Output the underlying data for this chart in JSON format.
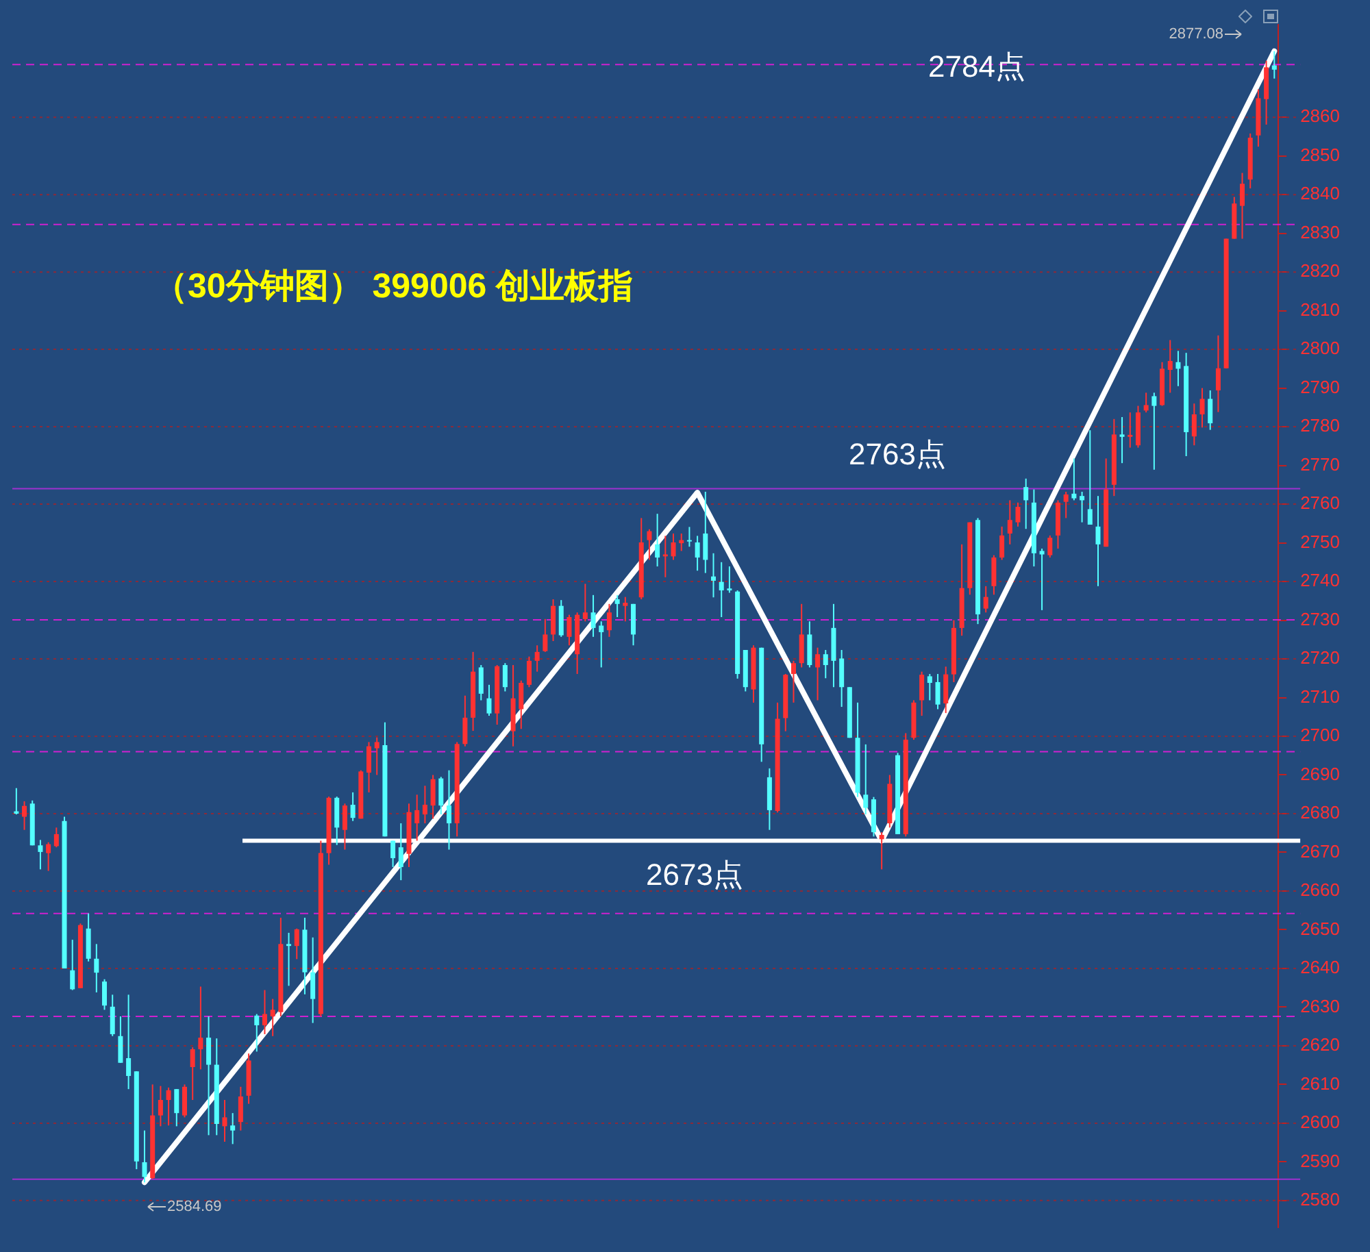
{
  "chart_data": {
    "type": "candlestick",
    "title": "（30分钟图） 399006 创业板指",
    "categories": [
      null,
      null,
      null,
      null,
      null,
      null,
      null,
      null,
      null,
      null,
      null,
      null,
      null,
      null,
      null,
      null,
      null,
      null,
      null,
      null,
      null,
      null,
      null,
      null,
      null,
      null,
      null,
      null,
      null,
      null,
      null,
      null,
      null,
      null,
      null,
      null,
      null,
      null,
      null,
      null,
      null,
      null,
      null,
      null,
      null,
      null,
      null,
      null,
      null,
      null,
      null,
      null,
      null,
      null,
      null,
      null,
      null,
      null,
      null,
      null,
      null,
      null,
      null,
      null,
      null,
      null,
      null,
      null,
      null,
      null,
      null,
      null,
      null,
      null,
      null,
      null,
      null,
      null,
      null,
      null,
      null,
      null,
      null,
      null,
      null,
      null,
      null,
      null,
      null,
      null,
      null,
      null,
      null,
      null,
      null,
      null,
      null,
      null,
      null,
      null,
      null,
      null,
      null,
      null,
      null,
      null,
      null,
      null,
      null,
      null,
      null,
      null,
      null,
      null,
      null,
      null,
      null,
      null,
      null,
      null,
      null,
      null,
      null,
      null,
      null,
      null,
      null,
      null,
      null,
      null,
      null,
      null,
      null,
      null,
      null,
      null,
      null,
      null,
      null,
      null,
      null,
      null,
      null,
      null,
      null,
      null,
      null,
      null,
      null,
      null,
      null,
      null,
      null,
      null,
      null,
      null,
      null,
      null
    ],
    "series": [
      {
        "type": "candlestick",
        "ohlc": [
          [
            2680.6,
            2686.6,
            2679.8,
            2680.0
          ],
          [
            2679.2,
            2683.2,
            2675.8,
            2682.0
          ],
          [
            2682.6,
            2683.4,
            2671.8,
            2671.8
          ],
          [
            2671.8,
            2673.2,
            2665.6,
            2670.1
          ],
          [
            2669.8,
            2672.6,
            2665.2,
            2672.1
          ],
          [
            2671.6,
            2676.4,
            2671.3,
            2674.7
          ],
          [
            2678.1,
            2679.2,
            2640.0,
            2640.0
          ],
          [
            2639.5,
            2647.4,
            2634.4,
            2634.6
          ],
          [
            2634.9,
            2651.6,
            2634.9,
            2651.2
          ],
          [
            2650.3,
            2654.2,
            2641.8,
            2642.5
          ],
          [
            2642.5,
            2646.3,
            2633.8,
            2638.9
          ],
          [
            2636.6,
            2637.2,
            2629.3,
            2630.4
          ],
          [
            2630.1,
            2633.2,
            2622.5,
            2623.0
          ],
          [
            2622.5,
            2627.6,
            2615.6,
            2615.6
          ],
          [
            2616.8,
            2633.2,
            2608.8,
            2612.2
          ],
          [
            2613.4,
            2613.4,
            2588.1,
            2590.1
          ],
          [
            2589.9,
            2598.1,
            2584.69,
            2586.1
          ],
          [
            2585.8,
            2610.0,
            2585.6,
            2602.0
          ],
          [
            2602.0,
            2609.6,
            2599.2,
            2606.0
          ],
          [
            2606.0,
            2609.2,
            2599.4,
            2608.5
          ],
          [
            2608.8,
            2608.8,
            2599.2,
            2602.6
          ],
          [
            2602.0,
            2610.0,
            2601.5,
            2609.4
          ],
          [
            2614.5,
            2619.6,
            2606.0,
            2619.1
          ],
          [
            2619.1,
            2635.3,
            2613.9,
            2622.1
          ],
          [
            2622.1,
            2627.6,
            2596.9,
            2615.1
          ],
          [
            2615.1,
            2621.9,
            2596.9,
            2599.8
          ],
          [
            2599.2,
            2606.0,
            2595.2,
            2601.5
          ],
          [
            2599.4,
            2602.6,
            2594.6,
            2598.1
          ],
          [
            2600.3,
            2609.4,
            2598.1,
            2606.9
          ],
          [
            2607.1,
            2618.0,
            2605.0,
            2616.2
          ],
          [
            2627.8,
            2628.2,
            2618.5,
            2625.3
          ],
          [
            2625.3,
            2634.4,
            2623.0,
            2628.2
          ],
          [
            2627.6,
            2632.1,
            2622.5,
            2629.3
          ],
          [
            2628.7,
            2653.1,
            2627.6,
            2646.3
          ],
          [
            2646.3,
            2649.2,
            2635.5,
            2645.8
          ],
          [
            2645.8,
            2650.3,
            2642.4,
            2650.1
          ],
          [
            2650.0,
            2653.1,
            2633.3,
            2639.0
          ],
          [
            2639.0,
            2648.0,
            2625.9,
            2632.1
          ],
          [
            2628.2,
            2673.0,
            2627.6,
            2669.8
          ],
          [
            2669.8,
            2684.4,
            2666.8,
            2684.1
          ],
          [
            2684.1,
            2684.4,
            2671.9,
            2676.4
          ],
          [
            2675.8,
            2682.6,
            2670.7,
            2682.1
          ],
          [
            2682.3,
            2685.5,
            2678.1,
            2678.9
          ],
          [
            2678.7,
            2691.2,
            2678.7,
            2690.9
          ],
          [
            2690.6,
            2698.5,
            2685.5,
            2697.4
          ],
          [
            2696.9,
            2699.7,
            2690.0,
            2698.5
          ],
          [
            2697.7,
            2703.6,
            2674.1,
            2674.1
          ],
          [
            2673.0,
            2673.0,
            2666.2,
            2668.5
          ],
          [
            2671.3,
            2677.5,
            2662.8,
            2666.2
          ],
          [
            2669.6,
            2682.6,
            2666.2,
            2680.4
          ],
          [
            2677.5,
            2684.9,
            2673.0,
            2680.9
          ],
          [
            2679.8,
            2687.2,
            2677.5,
            2682.3
          ],
          [
            2682.1,
            2690.0,
            2678.7,
            2688.9
          ],
          [
            2689.1,
            2689.5,
            2679.8,
            2682.1
          ],
          [
            2682.1,
            2691.2,
            2670.7,
            2677.5
          ],
          [
            2677.5,
            2698.5,
            2674.1,
            2698.0
          ],
          [
            2698.0,
            2710.5,
            2697.4,
            2704.8
          ],
          [
            2704.8,
            2721.8,
            2701.4,
            2716.7
          ],
          [
            2717.8,
            2718.4,
            2709.3,
            2711.0
          ],
          [
            2709.8,
            2713.3,
            2705.3,
            2705.9
          ],
          [
            2705.9,
            2718.4,
            2703.0,
            2718.1
          ],
          [
            2718.4,
            2718.9,
            2711.6,
            2712.7
          ],
          [
            2701.3,
            2718.4,
            2697.4,
            2709.8
          ],
          [
            2707.0,
            2714.4,
            2701.9,
            2713.8
          ],
          [
            2713.3,
            2720.6,
            2712.7,
            2719.5
          ],
          [
            2719.5,
            2723.5,
            2716.7,
            2721.8
          ],
          [
            2722.0,
            2730.3,
            2721.8,
            2726.3
          ],
          [
            2726.3,
            2735.4,
            2724.6,
            2733.7
          ],
          [
            2733.7,
            2735.2,
            2725.7,
            2726.1
          ],
          [
            2725.7,
            2731.4,
            2723.5,
            2730.8
          ],
          [
            2721.2,
            2732.0,
            2716.1,
            2731.4
          ],
          [
            2730.3,
            2739.4,
            2729.7,
            2732.0
          ],
          [
            2732.0,
            2736.5,
            2725.7,
            2728.0
          ],
          [
            2728.6,
            2729.7,
            2717.8,
            2726.9
          ],
          [
            2727.4,
            2734.2,
            2725.7,
            2732.0
          ],
          [
            2735.4,
            2736.5,
            2730.8,
            2734.2
          ],
          [
            2733.7,
            2736.0,
            2729.7,
            2734.5
          ],
          [
            2734.2,
            2734.2,
            2723.5,
            2726.3
          ],
          [
            2735.9,
            2756.4,
            2735.4,
            2750.1
          ],
          [
            2750.7,
            2753.5,
            2745.6,
            2753.0
          ],
          [
            2749.6,
            2757.5,
            2743.9,
            2746.2
          ],
          [
            2746.5,
            2751.8,
            2741.1,
            2747.0
          ],
          [
            2746.5,
            2752.4,
            2745.6,
            2750.1
          ],
          [
            2749.9,
            2752.4,
            2747.9,
            2750.7
          ],
          [
            2750.7,
            2754.1,
            2749.0,
            2750.4
          ],
          [
            2750.1,
            2751.8,
            2742.8,
            2746.2
          ],
          [
            2752.4,
            2763.2,
            2742.2,
            2745.6
          ],
          [
            2741.3,
            2747.3,
            2735.9,
            2740.2
          ],
          [
            2739.9,
            2745.0,
            2730.8,
            2737.7
          ],
          [
            2738.2,
            2743.9,
            2737.1,
            2737.7
          ],
          [
            2737.4,
            2737.7,
            2714.9,
            2716.1
          ],
          [
            2722.3,
            2722.3,
            2711.6,
            2712.7
          ],
          [
            2712.1,
            2723.5,
            2708.7,
            2722.9
          ],
          [
            2722.9,
            2722.9,
            2693.4,
            2697.9
          ],
          [
            2689.4,
            2691.7,
            2675.8,
            2680.9
          ],
          [
            2680.7,
            2708.7,
            2680.3,
            2704.5
          ],
          [
            2704.7,
            2716.1,
            2701.3,
            2715.9
          ],
          [
            2716.1,
            2719.5,
            2708.7,
            2718.9
          ],
          [
            2718.9,
            2734.2,
            2717.8,
            2726.3
          ],
          [
            2726.3,
            2729.7,
            2717.8,
            2718.4
          ],
          [
            2717.8,
            2722.9,
            2709.3,
            2721.2
          ],
          [
            2721.2,
            2722.3,
            2715.0,
            2718.4
          ],
          [
            2728.0,
            2734.2,
            2712.7,
            2719.5
          ],
          [
            2720.1,
            2722.3,
            2707.6,
            2712.7
          ],
          [
            2712.7,
            2712.7,
            2699.6,
            2699.6
          ],
          [
            2699.6,
            2708.7,
            2684.3,
            2685.4
          ],
          [
            2684.9,
            2697.9,
            2679.8,
            2681.5
          ],
          [
            2683.7,
            2684.3,
            2674.1,
            2675.2
          ],
          [
            2673.4,
            2675.2,
            2665.6,
            2674.5
          ],
          [
            2677.5,
            2690.0,
            2676.4,
            2687.7
          ],
          [
            2695.1,
            2695.7,
            2674.7,
            2674.7
          ],
          [
            2674.7,
            2700.8,
            2674.1,
            2699.1
          ],
          [
            2699.6,
            2709.3,
            2699.1,
            2708.7
          ],
          [
            2709.3,
            2716.7,
            2705.3,
            2715.9
          ],
          [
            2715.5,
            2716.1,
            2709.3,
            2713.8
          ],
          [
            2714.0,
            2716.1,
            2707.0,
            2708.2
          ],
          [
            2708.5,
            2718.0,
            2706.0,
            2716.0
          ],
          [
            2716.0,
            2730.0,
            2714.0,
            2728.0
          ],
          [
            2728.0,
            2749.6,
            2726.0,
            2738.3
          ],
          [
            2738.3,
            2755.3,
            2736.6,
            2755.3
          ],
          [
            2755.9,
            2756.4,
            2729.0,
            2731.5
          ],
          [
            2733.0,
            2738.8,
            2732.0,
            2736.0
          ],
          [
            2738.8,
            2746.8,
            2736.6,
            2746.2
          ],
          [
            2746.2,
            2754.2,
            2745.6,
            2751.9
          ],
          [
            2752.4,
            2761.0,
            2749.6,
            2755.9
          ],
          [
            2755.3,
            2760.4,
            2754.2,
            2759.3
          ],
          [
            2764.4,
            2766.6,
            2753.6,
            2761.0
          ],
          [
            2760.4,
            2763.8,
            2743.9,
            2747.3
          ],
          [
            2747.9,
            2748.5,
            2732.6,
            2747.0
          ],
          [
            2746.8,
            2751.9,
            2746.2,
            2751.3
          ],
          [
            2751.9,
            2761.0,
            2748.5,
            2760.4
          ],
          [
            2760.6,
            2763.2,
            2756.4,
            2762.5
          ],
          [
            2762.7,
            2771.8,
            2761.0,
            2761.5
          ],
          [
            2762.1,
            2763.2,
            2755.3,
            2761.0
          ],
          [
            2758.7,
            2779.1,
            2754.7,
            2754.7
          ],
          [
            2754.2,
            2762.1,
            2738.8,
            2749.6
          ],
          [
            2749.0,
            2771.8,
            2749.0,
            2763.8
          ],
          [
            2765.0,
            2782.0,
            2762.1,
            2778.0
          ],
          [
            2778.0,
            2782.5,
            2770.6,
            2777.4
          ],
          [
            2777.4,
            2783.7,
            2774.6,
            2777.9
          ],
          [
            2775.2,
            2785.4,
            2774.6,
            2783.7
          ],
          [
            2784.2,
            2788.8,
            2783.7,
            2785.6
          ],
          [
            2787.9,
            2788.8,
            2768.9,
            2785.4
          ],
          [
            2785.6,
            2796.7,
            2785.4,
            2795.0
          ],
          [
            2794.7,
            2802.4,
            2788.8,
            2797.0
          ],
          [
            2796.7,
            2799.6,
            2790.5,
            2795.0
          ],
          [
            2795.7,
            2799.1,
            2772.4,
            2778.6
          ],
          [
            2777.5,
            2786.0,
            2775.2,
            2783.2
          ],
          [
            2783.2,
            2790.0,
            2779.8,
            2787.2
          ],
          [
            2787.2,
            2789.4,
            2779.2,
            2780.9
          ],
          [
            2789.4,
            2803.6,
            2783.8,
            2795.1
          ],
          [
            2795.1,
            2828.6,
            2795.1,
            2828.6
          ],
          [
            2828.6,
            2839.4,
            2828.6,
            2837.7
          ],
          [
            2837.1,
            2845.6,
            2828.6,
            2842.8
          ],
          [
            2843.9,
            2855.8,
            2841.6,
            2854.7
          ],
          [
            2855.3,
            2867.2,
            2852.4,
            2864.9
          ],
          [
            2864.7,
            2874.6,
            2858.1,
            2872.9
          ],
          [
            2873.4,
            2877.08,
            2870.0,
            2872.3
          ]
        ],
        "colors": [
          "#54ffff",
          "#ff3232",
          "#54ffff",
          "#54ffff",
          "#ff3232",
          "#ff3232",
          "#54ffff",
          "#54ffff",
          "#ff3232",
          "#54ffff",
          "#54ffff",
          "#54ffff",
          "#54ffff",
          "#54ffff",
          "#54ffff",
          "#54ffff",
          "#54ffff",
          "#ff3232",
          "#ff3232",
          "#ff3232",
          "#54ffff",
          "#ff3232",
          "#ff3232",
          "#ff3232",
          "#54ffff",
          "#54ffff",
          "#ff3232",
          "#54ffff",
          "#ff3232",
          "#ff3232",
          "#54ffff",
          "#ff3232",
          "#ff3232",
          "#ff3232",
          "#54ffff",
          "#ff3232",
          "#54ffff",
          "#54ffff",
          "#ff3232",
          "#ff3232",
          "#54ffff",
          "#ff3232",
          "#54ffff",
          "#ff3232",
          "#ff3232",
          "#ff3232",
          "#54ffff",
          "#54ffff",
          "#54ffff",
          "#ff3232",
          "#ff3232",
          "#ff3232",
          "#ff3232",
          "#54ffff",
          "#54ffff",
          "#ff3232",
          "#ff3232",
          "#ff3232",
          "#54ffff",
          "#54ffff",
          "#ff3232",
          "#54ffff",
          "#ff3232",
          "#ff3232",
          "#ff3232",
          "#ff3232",
          "#ff3232",
          "#ff3232",
          "#54ffff",
          "#ff3232",
          "#ff3232",
          "#ff3232",
          "#54ffff",
          "#54ffff",
          "#ff3232",
          "#54ffff",
          "#ff3232",
          "#54ffff",
          "#ff3232",
          "#ff3232",
          "#54ffff",
          "#ff3232",
          "#ff3232",
          "#ff3232",
          "#54ffff",
          "#54ffff",
          "#54ffff",
          "#54ffff",
          "#54ffff",
          "#54ffff",
          "#54ffff",
          "#54ffff",
          "#ff3232",
          "#54ffff",
          "#54ffff",
          "#ff3232",
          "#ff3232",
          "#ff3232",
          "#ff3232",
          "#54ffff",
          "#ff3232",
          "#54ffff",
          "#54ffff",
          "#54ffff",
          "#54ffff",
          "#54ffff",
          "#54ffff",
          "#54ffff",
          "#ff3232",
          "#ff3232",
          "#54ffff",
          "#ff3232",
          "#ff3232",
          "#ff3232",
          "#54ffff",
          "#54ffff",
          "#ff3232",
          "#ff3232",
          "#ff3232",
          "#ff3232",
          "#54ffff",
          "#ff3232",
          "#ff3232",
          "#ff3232",
          "#ff3232",
          "#ff3232",
          "#54ffff",
          "#54ffff",
          "#54ffff",
          "#ff3232",
          "#ff3232",
          "#ff3232",
          "#54ffff",
          "#54ffff",
          "#54ffff",
          "#54ffff",
          "#ff3232",
          "#ff3232",
          "#54ffff",
          "#ff3232",
          "#ff3232",
          "#ff3232",
          "#54ffff",
          "#ff3232",
          "#ff3232",
          "#54ffff",
          "#54ffff",
          "#ff3232",
          "#ff3232",
          "#54ffff",
          "#ff3232",
          "#ff3232",
          "#ff3232",
          "#ff3232",
          "#ff3232",
          "#ff3232",
          "#ff3232",
          "#54ffff"
        ]
      },
      {
        "type": "line",
        "color": "#ffffff",
        "values": [
          null,
          null,
          null,
          null,
          null,
          null,
          null,
          null,
          null,
          null,
          null,
          null,
          null,
          null,
          null,
          null,
          2584.69,
          null,
          null,
          null,
          null,
          null,
          null,
          null,
          null,
          null,
          null,
          null,
          null,
          null,
          null,
          null,
          null,
          null,
          null,
          null,
          null,
          null,
          null,
          null,
          null,
          null,
          null,
          null,
          null,
          null,
          null,
          null,
          null,
          null,
          null,
          null,
          null,
          null,
          null,
          null,
          null,
          null,
          null,
          null,
          null,
          null,
          null,
          null,
          null,
          null,
          null,
          null,
          null,
          null,
          null,
          null,
          null,
          null,
          null,
          null,
          null,
          null,
          null,
          null,
          null,
          null,
          null,
          null,
          null,
          2763,
          null,
          null,
          null,
          null,
          null,
          null,
          null,
          null,
          null,
          null,
          null,
          null,
          null,
          null,
          null,
          null,
          null,
          null,
          null,
          null,
          null,
          null,
          2673,
          null,
          null,
          null,
          null,
          null,
          null,
          null,
          null,
          null,
          null,
          null,
          null,
          null,
          null,
          null,
          null,
          null,
          null,
          null,
          null,
          null,
          null,
          null,
          null,
          null,
          null,
          null,
          null,
          null,
          null,
          null,
          null,
          null,
          null,
          null,
          null,
          null,
          null,
          null,
          null,
          null,
          null,
          null,
          null,
          null,
          null,
          null,
          null,
          2877.08
        ]
      }
    ],
    "ylim": [
      2573,
      2884
    ],
    "yticks": [
      2580,
      2590,
      2600,
      2610,
      2620,
      2630,
      2640,
      2650,
      2660,
      2670,
      2680,
      2690,
      2700,
      2710,
      2720,
      2730,
      2740,
      2750,
      2760,
      2770,
      2780,
      2790,
      2800,
      2810,
      2820,
      2830,
      2840,
      2850,
      2860
    ],
    "ref_lines": [
      {
        "axis": "y",
        "value": 2580,
        "color": "#8a2a3a",
        "line_style": "dotted"
      },
      {
        "axis": "y",
        "value": 2600,
        "color": "#8a2a3a",
        "line_style": "dotted"
      },
      {
        "axis": "y",
        "value": 2620,
        "color": "#8a2a3a",
        "line_style": "dotted"
      },
      {
        "axis": "y",
        "value": 2640,
        "color": "#8a2a3a",
        "line_style": "dotted"
      },
      {
        "axis": "y",
        "value": 2660,
        "color": "#8a2a3a",
        "line_style": "dotted"
      },
      {
        "axis": "y",
        "value": 2680,
        "color": "#8a2a3a",
        "line_style": "dotted"
      },
      {
        "axis": "y",
        "value": 2700,
        "color": "#8a2a3a",
        "line_style": "dotted"
      },
      {
        "axis": "y",
        "value": 2720,
        "color": "#8a2a3a",
        "line_style": "dotted"
      },
      {
        "axis": "y",
        "value": 2740,
        "color": "#8a2a3a",
        "line_style": "dotted"
      },
      {
        "axis": "y",
        "value": 2760,
        "color": "#8a2a3a",
        "line_style": "dotted"
      },
      {
        "axis": "y",
        "value": 2780,
        "color": "#8a2a3a",
        "line_style": "dotted"
      },
      {
        "axis": "y",
        "value": 2800,
        "color": "#8a2a3a",
        "line_style": "dotted"
      },
      {
        "axis": "y",
        "value": 2820,
        "color": "#8a2a3a",
        "line_style": "dotted"
      },
      {
        "axis": "y",
        "value": 2840,
        "color": "#8a2a3a",
        "line_style": "dotted"
      },
      {
        "axis": "y",
        "value": 2860,
        "color": "#8a2a3a",
        "line_style": "dotted"
      },
      {
        "axis": "y",
        "value": 2873.6,
        "color": "#d020d0",
        "line_style": "dashed"
      },
      {
        "axis": "y",
        "value": 2832.3,
        "color": "#d020d0",
        "line_style": "dashed"
      },
      {
        "axis": "y",
        "value": 2764,
        "color": "#a030d0",
        "line_style": "solid"
      },
      {
        "axis": "y",
        "value": 2730.1,
        "color": "#d020d0",
        "line_style": "dashed"
      },
      {
        "axis": "y",
        "value": 2696,
        "color": "#d020d0",
        "line_style": "dashed"
      },
      {
        "axis": "y",
        "value": 2654.2,
        "color": "#d020d0",
        "line_style": "dashed"
      },
      {
        "axis": "y",
        "value": 2627.6,
        "color": "#d020d0",
        "line_style": "dashed"
      },
      {
        "axis": "y",
        "value": 2585.5,
        "color": "#a030d0",
        "line_style": "solid"
      },
      {
        "axis": "y",
        "value": 2673,
        "label": "2673点",
        "color": "#ffffff",
        "line_style": "solid"
      }
    ],
    "annotations": [
      "2784点",
      "2763点",
      "2877.08",
      "2584.69"
    ],
    "legend": false,
    "grid": false
  }
}
